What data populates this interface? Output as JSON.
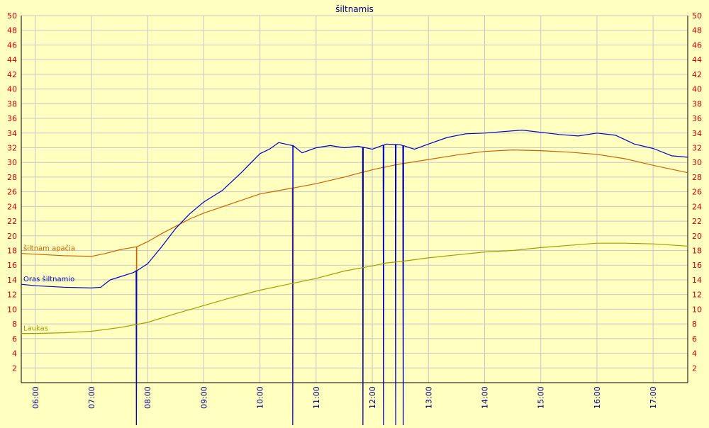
{
  "chart_data": {
    "type": "line",
    "title": "šiltnamis",
    "xlabel": "",
    "ylabel": "",
    "xlim": [
      "05:45",
      "17:37"
    ],
    "ylim": [
      0,
      50
    ],
    "y_ticks": [
      2,
      4,
      6,
      8,
      10,
      12,
      14,
      16,
      18,
      20,
      22,
      24,
      26,
      28,
      30,
      32,
      34,
      36,
      38,
      40,
      42,
      44,
      46,
      48,
      50
    ],
    "y_axis_right_duplicate": true,
    "x_tick_labels": [
      "06:00",
      "07:00",
      "08:00",
      "09:00",
      "10:00",
      "11:00",
      "12:00",
      "13:00",
      "14:00",
      "15:00",
      "16:00",
      "17:00"
    ],
    "grid": true,
    "legend_placement": "inline-left",
    "colors": {
      "background": "#ffffc0",
      "grid": "#c8c8c8",
      "axis": "#000000",
      "tick_label": "#cc0000",
      "time_label": "#000080",
      "title": "#000080"
    },
    "series": [
      {
        "name": "šiltnam apačia",
        "color": "#c86400",
        "points": [
          [
            "05:45",
            17.6
          ],
          [
            "06:00",
            17.5
          ],
          [
            "06:30",
            17.3
          ],
          [
            "07:00",
            17.2
          ],
          [
            "07:15",
            17.6
          ],
          [
            "07:30",
            18.1
          ],
          [
            "07:48",
            18.5
          ],
          [
            "08:00",
            19.2
          ],
          [
            "08:15",
            20.3
          ],
          [
            "08:30",
            21.3
          ],
          [
            "08:45",
            22.3
          ],
          [
            "09:00",
            23.1
          ],
          [
            "09:30",
            24.4
          ],
          [
            "10:00",
            25.7
          ],
          [
            "10:30",
            26.4
          ],
          [
            "11:00",
            27.1
          ],
          [
            "11:30",
            28.0
          ],
          [
            "12:00",
            29.0
          ],
          [
            "12:30",
            29.8
          ],
          [
            "13:00",
            30.4
          ],
          [
            "13:30",
            31.0
          ],
          [
            "14:00",
            31.5
          ],
          [
            "14:30",
            31.7
          ],
          [
            "15:00",
            31.6
          ],
          [
            "15:30",
            31.4
          ],
          [
            "16:00",
            31.1
          ],
          [
            "16:30",
            30.5
          ],
          [
            "17:00",
            29.6
          ],
          [
            "17:37",
            28.6
          ]
        ],
        "drops": [
          [
            "07:48",
            0
          ],
          [
            "10:35",
            0
          ],
          [
            "11:50",
            0
          ],
          [
            "12:12",
            0
          ],
          [
            "12:25",
            0
          ],
          [
            "12:33",
            0
          ]
        ]
      },
      {
        "name": "Oras šiltnamio",
        "color": "#0000c0",
        "points": [
          [
            "05:45",
            13.4
          ],
          [
            "06:00",
            13.2
          ],
          [
            "06:30",
            13.0
          ],
          [
            "07:00",
            12.9
          ],
          [
            "07:10",
            13.0
          ],
          [
            "07:20",
            14.0
          ],
          [
            "07:45",
            15.0
          ],
          [
            "08:00",
            16.2
          ],
          [
            "08:15",
            18.5
          ],
          [
            "08:30",
            21.0
          ],
          [
            "08:45",
            23.0
          ],
          [
            "09:00",
            24.6
          ],
          [
            "09:20",
            26.2
          ],
          [
            "09:40",
            28.6
          ],
          [
            "10:00",
            31.2
          ],
          [
            "10:10",
            31.8
          ],
          [
            "10:20",
            32.7
          ],
          [
            "10:35",
            32.3
          ],
          [
            "10:45",
            31.3
          ],
          [
            "11:00",
            32.0
          ],
          [
            "11:15",
            32.3
          ],
          [
            "11:30",
            32.0
          ],
          [
            "11:45",
            32.2
          ],
          [
            "12:00",
            31.8
          ],
          [
            "12:15",
            32.5
          ],
          [
            "12:30",
            32.4
          ],
          [
            "12:45",
            31.8
          ],
          [
            "13:00",
            32.5
          ],
          [
            "13:20",
            33.4
          ],
          [
            "13:40",
            33.9
          ],
          [
            "14:00",
            34.0
          ],
          [
            "14:20",
            34.2
          ],
          [
            "14:40",
            34.4
          ],
          [
            "15:00",
            34.1
          ],
          [
            "15:20",
            33.8
          ],
          [
            "15:40",
            33.6
          ],
          [
            "16:00",
            34.0
          ],
          [
            "16:20",
            33.7
          ],
          [
            "16:40",
            32.5
          ],
          [
            "17:00",
            31.9
          ],
          [
            "17:20",
            30.9
          ],
          [
            "17:37",
            30.7
          ]
        ],
        "drops": [
          [
            "07:48",
            0
          ],
          [
            "10:35",
            0
          ],
          [
            "11:50",
            0
          ],
          [
            "12:12",
            0
          ],
          [
            "12:25",
            0
          ],
          [
            "12:33",
            0
          ]
        ]
      },
      {
        "name": "Laukas",
        "color": "#a0a000",
        "points": [
          [
            "05:45",
            6.7
          ],
          [
            "06:00",
            6.7
          ],
          [
            "06:30",
            6.8
          ],
          [
            "07:00",
            7.0
          ],
          [
            "07:30",
            7.5
          ],
          [
            "08:00",
            8.2
          ],
          [
            "08:30",
            9.4
          ],
          [
            "09:00",
            10.5
          ],
          [
            "09:30",
            11.6
          ],
          [
            "10:00",
            12.6
          ],
          [
            "10:30",
            13.4
          ],
          [
            "11:00",
            14.2
          ],
          [
            "11:30",
            15.2
          ],
          [
            "12:00",
            15.9
          ],
          [
            "12:15",
            16.3
          ],
          [
            "12:30",
            16.5
          ],
          [
            "13:00",
            17.0
          ],
          [
            "13:30",
            17.4
          ],
          [
            "14:00",
            17.8
          ],
          [
            "14:30",
            18.0
          ],
          [
            "15:00",
            18.4
          ],
          [
            "15:30",
            18.7
          ],
          [
            "16:00",
            19.0
          ],
          [
            "16:30",
            19.0
          ],
          [
            "17:00",
            18.9
          ],
          [
            "17:37",
            18.6
          ]
        ]
      }
    ]
  }
}
